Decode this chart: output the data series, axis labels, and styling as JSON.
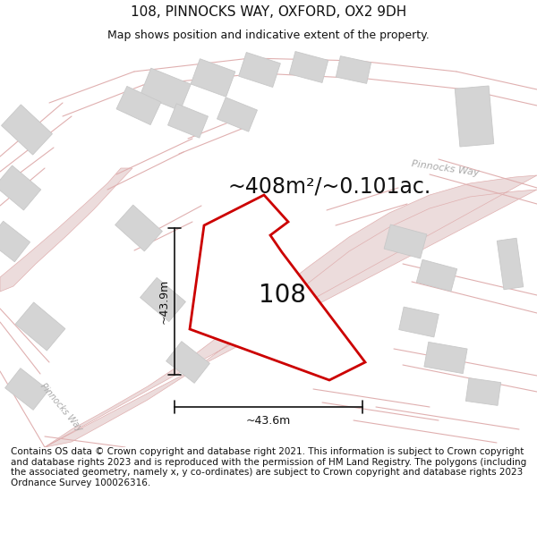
{
  "title": "108, PINNOCKS WAY, OXFORD, OX2 9DH",
  "subtitle": "Map shows position and indicative extent of the property.",
  "footer_text": "Contains OS data © Crown copyright and database right 2021. This information is subject to Crown copyright and database rights 2023 and is reproduced with the permission of HM Land Registry. The polygons (including the associated geometry, namely x, y co-ordinates) are subject to Crown copyright and database rights 2023 Ordnance Survey 100026316.",
  "area_label": "~408m²/~0.101ac.",
  "property_label": "108",
  "dim_h": "~43.6m",
  "dim_v": "~43.9m",
  "road_label_upper": "Pinnocks Way",
  "road_label_mid": "Pinnocks Way",
  "road_label_lower": "Pinnocks Way",
  "background_color": "#ffffff",
  "map_bg_color": "#f7f3f3",
  "road_fill_color": "#ecdcdc",
  "road_line_color": "#e0b0b0",
  "building_fill": "#d4d4d4",
  "building_edge": "#c8c8c8",
  "property_color": "#cc0000",
  "property_lw": 2.0,
  "dim_color": "#111111",
  "text_color": "#111111",
  "road_label_color": "#aaaaaa",
  "title_fontsize": 11,
  "subtitle_fontsize": 9,
  "footer_fontsize": 7.5,
  "area_fontsize": 17,
  "prop_label_fontsize": 20,
  "dim_fontsize": 9,
  "road_label_fontsize": 8
}
